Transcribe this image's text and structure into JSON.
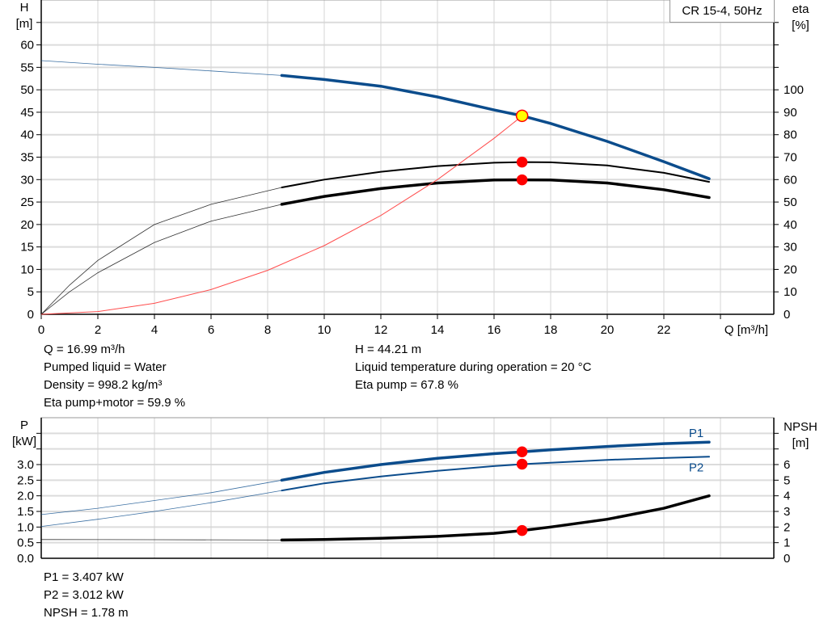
{
  "chart_data": [
    {
      "type": "line",
      "title": "",
      "legend_label": "CR 15-4, 50Hz",
      "xlabel": "Q [m³/h]",
      "xlim": [
        0,
        26
      ],
      "x_ticks": [
        "0",
        "2",
        "4",
        "6",
        "8",
        "10",
        "12",
        "14",
        "16",
        "18",
        "20",
        "22"
      ],
      "ylabel_left": [
        "H",
        "[m]"
      ],
      "ylim_left": [
        0,
        70
      ],
      "y_ticks_left": [
        "0",
        "5",
        "10",
        "15",
        "20",
        "25",
        "30",
        "35",
        "40",
        "45",
        "50",
        "55",
        "60"
      ],
      "ylabel_right": [
        "eta",
        "[%]"
      ],
      "ylim_right": [
        0,
        140
      ],
      "y_ticks_right": [
        "0",
        "10",
        "20",
        "30",
        "40",
        "50",
        "60",
        "70",
        "80",
        "90",
        "100"
      ],
      "grid": true,
      "operating_range": [
        8.5,
        23.6
      ],
      "series": [
        {
          "key": "head",
          "axis": "left",
          "color": "#0b4c8c",
          "x": [
            0,
            2,
            4,
            6,
            8.5,
            10,
            12,
            14,
            16,
            17,
            18,
            20,
            22,
            23.6
          ],
          "y": [
            56.5,
            55.7,
            55,
            54.2,
            53.2,
            52.3,
            50.8,
            48.4,
            45.5,
            44.2,
            42.5,
            38.5,
            34,
            30.2
          ]
        },
        {
          "key": "eta_pump",
          "axis": "right",
          "color": "#000000",
          "x": [
            0,
            1,
            2,
            4,
            6,
            8.5,
            10,
            12,
            14,
            16,
            17,
            18,
            20,
            22,
            23.6
          ],
          "y": [
            0,
            13,
            24,
            40,
            49,
            56.5,
            60,
            63.5,
            66,
            67.5,
            67.8,
            67.7,
            66.3,
            63,
            59
          ]
        },
        {
          "key": "eta_pump_motor",
          "axis": "right",
          "color": "#000000",
          "x": [
            0,
            1,
            2,
            4,
            6,
            8.5,
            10,
            12,
            14,
            16,
            17,
            18,
            20,
            22,
            23.6
          ],
          "y": [
            0,
            10,
            18.5,
            32,
            41.5,
            49,
            52.5,
            56,
            58.5,
            59.8,
            59.9,
            59.8,
            58.5,
            55.5,
            52
          ]
        },
        {
          "key": "system_curve",
          "axis": "left",
          "color": "#ff4d4d",
          "x": [
            0,
            2,
            4,
            6,
            8,
            10,
            12,
            14,
            16,
            17
          ],
          "y": [
            0,
            0.61,
            2.45,
            5.51,
            9.79,
            15.3,
            22.0,
            30.0,
            39.2,
            44.21
          ]
        }
      ],
      "duty_points": [
        {
          "axis": "left",
          "x": 16.99,
          "y": 44.21,
          "fill": "#ffff00",
          "stroke": "#ff0000"
        },
        {
          "axis": "right",
          "x": 16.99,
          "y": 67.8,
          "fill": "#ff0000",
          "stroke": "#ff0000"
        },
        {
          "axis": "right",
          "x": 16.99,
          "y": 59.9,
          "fill": "#ff0000",
          "stroke": "#ff0000"
        }
      ]
    },
    {
      "type": "line",
      "title": "",
      "xlim": [
        0,
        26
      ],
      "ylabel_left": [
        "P",
        "[kW]"
      ],
      "ylim_left": [
        0,
        4.5
      ],
      "y_ticks_left": [
        "0.0",
        "0.5",
        "1.0",
        "1.5",
        "2.0",
        "2.5",
        "3.0"
      ],
      "ylabel_right": [
        "NPSH",
        "[m]"
      ],
      "ylim_right": [
        0,
        9
      ],
      "y_ticks_right": [
        "0",
        "1",
        "2",
        "3",
        "4",
        "5",
        "6"
      ],
      "grid": true,
      "operating_range": [
        8.5,
        23.6
      ],
      "series": [
        {
          "key": "p1",
          "name": "P1",
          "axis": "left",
          "color": "#0b4c8c",
          "x": [
            0,
            2,
            4,
            6,
            8.5,
            10,
            12,
            14,
            16,
            17,
            18,
            20,
            22,
            23.6
          ],
          "y": [
            1.4,
            1.6,
            1.85,
            2.1,
            2.5,
            2.75,
            3.0,
            3.2,
            3.35,
            3.407,
            3.47,
            3.58,
            3.67,
            3.72
          ]
        },
        {
          "key": "p2",
          "name": "P2",
          "axis": "left",
          "color": "#0b4c8c",
          "x": [
            0,
            2,
            4,
            6,
            8.5,
            10,
            12,
            14,
            16,
            17,
            18,
            20,
            22,
            23.6
          ],
          "y": [
            1.02,
            1.25,
            1.5,
            1.78,
            2.17,
            2.4,
            2.62,
            2.8,
            2.95,
            3.012,
            3.06,
            3.15,
            3.21,
            3.25
          ]
        },
        {
          "key": "npsh",
          "axis": "right",
          "color": "#000000",
          "x": [
            0,
            4,
            8.5,
            10,
            12,
            14,
            16,
            17,
            18,
            20,
            22,
            23.6
          ],
          "y": [
            1.2,
            1.19,
            1.17,
            1.2,
            1.28,
            1.4,
            1.6,
            1.78,
            2.0,
            2.5,
            3.2,
            4.0
          ]
        }
      ],
      "duty_points": [
        {
          "axis": "left",
          "x": 16.99,
          "y": 3.407,
          "fill": "#ff0000",
          "stroke": "#ff0000"
        },
        {
          "axis": "left",
          "x": 16.99,
          "y": 3.012,
          "fill": "#ff0000",
          "stroke": "#ff0000"
        },
        {
          "axis": "right",
          "x": 16.99,
          "y": 1.78,
          "fill": "#ff0000",
          "stroke": "#ff0000"
        }
      ]
    }
  ],
  "info_top": {
    "q": "Q = 16.99 m³/h",
    "liquid": "Pumped liquid = Water",
    "density": "Density = 998.2 kg/m³",
    "eta_total": "Eta pump+motor = 59.9 %",
    "h": "H = 44.21 m",
    "temperature": "Liquid temperature during operation = 20 °C",
    "eta_pump": "Eta pump = 67.8 %"
  },
  "info_bottom": {
    "p1": "P1 = 3.407 kW",
    "p2": "P2 = 3.012 kW",
    "npsh": "NPSH = 1.78 m"
  }
}
